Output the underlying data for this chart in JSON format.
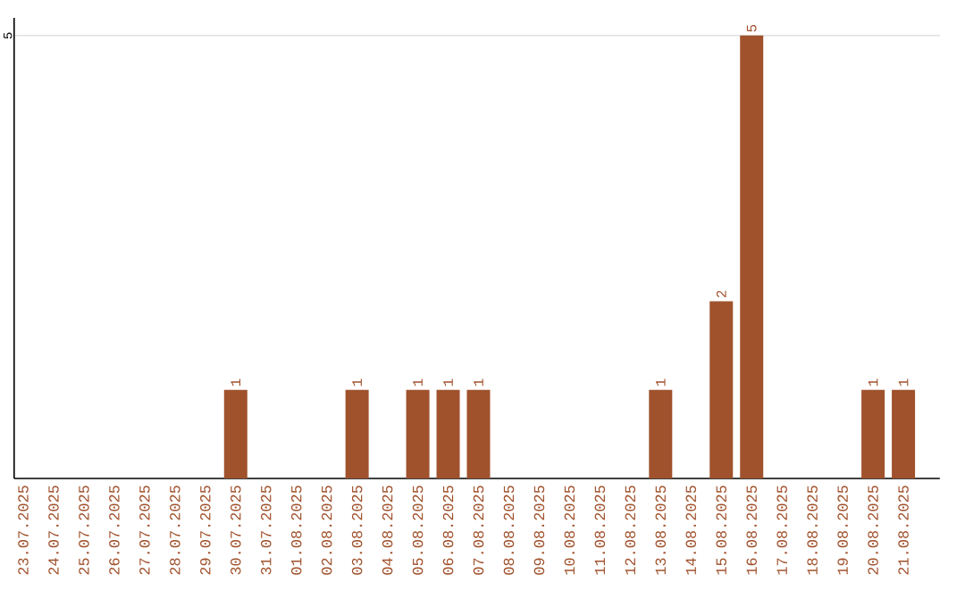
{
  "chart_data": {
    "type": "bar",
    "categories": [
      "23.07.2025",
      "24.07.2025",
      "25.07.2025",
      "26.07.2025",
      "27.07.2025",
      "28.07.2025",
      "29.07.2025",
      "30.07.2025",
      "31.07.2025",
      "01.08.2025",
      "02.08.2025",
      "03.08.2025",
      "04.08.2025",
      "05.08.2025",
      "06.08.2025",
      "07.08.2025",
      "08.08.2025",
      "09.08.2025",
      "10.08.2025",
      "11.08.2025",
      "12.08.2025",
      "13.08.2025",
      "14.08.2025",
      "15.08.2025",
      "16.08.2025",
      "17.08.2025",
      "18.08.2025",
      "19.08.2025",
      "20.08.2025",
      "21.08.2025"
    ],
    "values": [
      0,
      0,
      0,
      0,
      0,
      0,
      0,
      1,
      0,
      0,
      0,
      1,
      0,
      1,
      1,
      1,
      0,
      0,
      0,
      0,
      0,
      1,
      0,
      2,
      5,
      0,
      0,
      0,
      1,
      1
    ],
    "value_labels": [
      null,
      null,
      null,
      null,
      null,
      null,
      null,
      "1",
      null,
      null,
      null,
      "1",
      null,
      "1",
      "1",
      "1",
      null,
      null,
      null,
      null,
      null,
      "1",
      null,
      "2",
      "5",
      null,
      null,
      null,
      "1",
      "1"
    ],
    "color": "#a0522d",
    "ylim": [
      0,
      5.2
    ],
    "yticks": [
      5
    ],
    "grid": "y"
  }
}
